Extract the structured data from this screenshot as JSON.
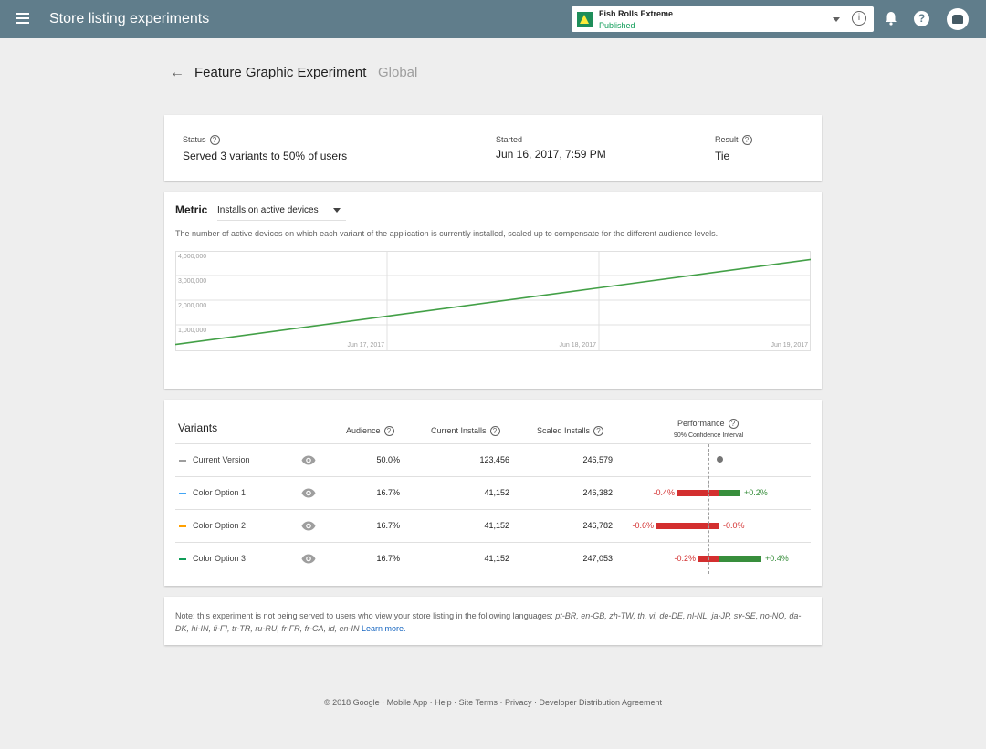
{
  "header": {
    "title": "Store listing experiments",
    "app_name": "Fish Rolls Extreme",
    "app_status": "Published",
    "info_glyph": "i",
    "help_glyph": "?"
  },
  "experiment": {
    "back_glyph": "←",
    "title": "Feature Graphic Experiment",
    "scope": "Global"
  },
  "status_card": {
    "status_label": "Status",
    "status_value": "Served 3 variants to 50% of users",
    "started_label": "Started",
    "started_value": "Jun 16, 2017, 7:59 PM",
    "result_label": "Result",
    "result_value": "Tie"
  },
  "metric": {
    "label": "Metric",
    "selected": "Installs on active devices",
    "description": "The number of active devices on which each variant of the application is currently installed, scaled up to compensate for the different audience levels."
  },
  "chart_data": {
    "type": "line",
    "x": [
      "Jun 16, 2017",
      "Jun 17, 2017",
      "Jun 18, 2017",
      "Jun 19, 2017"
    ],
    "x_tick_labels": [
      "Jun 17, 2017",
      "Jun 18, 2017",
      "Jun 19, 2017"
    ],
    "y_tick_labels": [
      "4,000,000",
      "3,000,000",
      "2,000,000",
      "1,000,000"
    ],
    "ylim": [
      0,
      4000000
    ],
    "series": [
      {
        "values": [
          200000,
          1350000,
          2500000,
          3650000
        ],
        "color": "#43a047"
      }
    ],
    "grid": true
  },
  "variants": {
    "title": "Variants",
    "columns": {
      "audience": "Audience",
      "current_installs": "Current Installs",
      "scaled_installs": "Scaled Installs",
      "performance": "Performance",
      "performance_sub": "90% Confidence Interval"
    },
    "rows": [
      {
        "name": "Current Version",
        "color": "#9e9e9e",
        "audience": "50.0%",
        "current": "123,456",
        "scaled": "246,579",
        "low": "",
        "high": ""
      },
      {
        "name": "Color Option 1",
        "color": "#42a5f5",
        "audience": "16.7%",
        "current": "41,152",
        "scaled": "246,382",
        "low": "-0.4%",
        "high": "+0.2%"
      },
      {
        "name": "Color Option 2",
        "color": "#ffa000",
        "audience": "16.7%",
        "current": "41,152",
        "scaled": "246,782",
        "low": "-0.6%",
        "high": "-0.0%"
      },
      {
        "name": "Color Option 3",
        "color": "#0f9d58",
        "audience": "16.7%",
        "current": "41,152",
        "scaled": "247,053",
        "low": "-0.2%",
        "high": "+0.4%"
      }
    ]
  },
  "note": {
    "text": "Note: this experiment is not being served to users who view your store listing in the following languages:",
    "languages_1": "pt-BR, en-GB, zh-TW, th, vi, de-DE, nl-NL, ja-JP, sv-SE, no-NO,",
    "languages_2": "da-DK, hi-IN, fi-FI, tr-TR, ru-RU, fr-FR, fr-CA, id, en-IN",
    "link": "Learn more."
  },
  "footer": {
    "text": "© 2018 Google · Mobile App · Help · Site Terms · Privacy · Developer Distribution Agreement"
  }
}
